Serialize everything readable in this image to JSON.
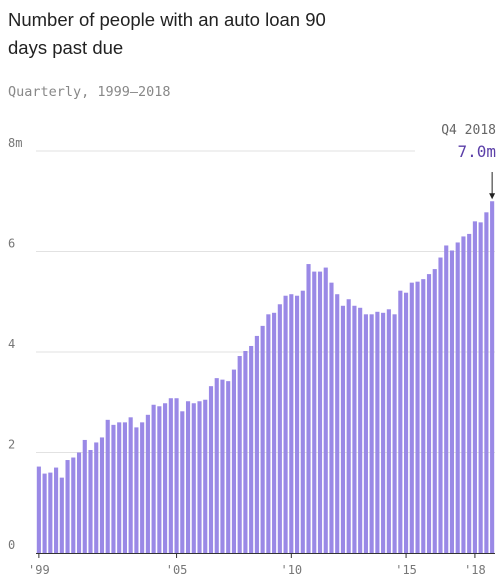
{
  "chart_data": {
    "type": "bar",
    "title": "Number of people with an auto loan 90 days past due",
    "subtitle": "Quarterly, 1999–2018",
    "y_unit_suffix": "m",
    "ylim": [
      0,
      8
    ],
    "y_ticks": [
      {
        "value": 0,
        "label": "0"
      },
      {
        "value": 2,
        "label": "2"
      },
      {
        "value": 4,
        "label": "4"
      },
      {
        "value": 6,
        "label": "6"
      },
      {
        "value": 8,
        "label": "8m"
      }
    ],
    "x_ticks": [
      {
        "index": 0,
        "label": "'99"
      },
      {
        "index": 24,
        "label": "'05"
      },
      {
        "index": 44,
        "label": "'10"
      },
      {
        "index": 64,
        "label": "'15"
      },
      {
        "index": 76,
        "label": "'18"
      }
    ],
    "grid": true,
    "bar_color": "#9a89e6",
    "annotation": {
      "label": "Q4 2018",
      "value_label": "7.0m",
      "index": 79,
      "value": 7.0,
      "color": "#5b3fa8"
    },
    "values": [
      1.72,
      1.58,
      1.6,
      1.7,
      1.5,
      1.85,
      1.9,
      2.0,
      2.25,
      2.05,
      2.2,
      2.3,
      2.65,
      2.55,
      2.6,
      2.6,
      2.7,
      2.5,
      2.6,
      2.75,
      2.95,
      2.92,
      2.98,
      3.08,
      3.08,
      2.82,
      3.02,
      2.98,
      3.02,
      3.05,
      3.32,
      3.48,
      3.45,
      3.42,
      3.65,
      3.92,
      4.02,
      4.12,
      4.32,
      4.52,
      4.75,
      4.78,
      4.95,
      5.12,
      5.15,
      5.12,
      5.22,
      5.75,
      5.6,
      5.6,
      5.68,
      5.38,
      5.15,
      4.92,
      5.05,
      4.92,
      4.88,
      4.75,
      4.75,
      4.8,
      4.78,
      4.85,
      4.75,
      5.22,
      5.18,
      5.38,
      5.4,
      5.45,
      5.55,
      5.65,
      5.88,
      6.12,
      6.02,
      6.18,
      6.3,
      6.35,
      6.6,
      6.58,
      6.78,
      7.0
    ]
  }
}
